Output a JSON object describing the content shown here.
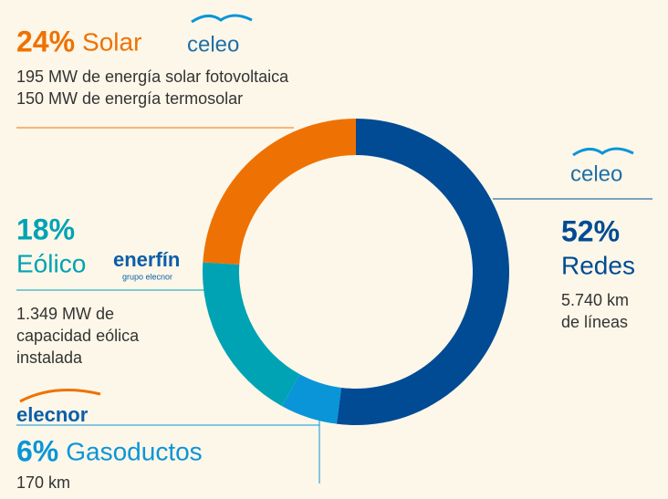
{
  "chart_data": {
    "type": "pie",
    "donut": true,
    "categories": [
      "Redes",
      "Gasoductos",
      "Eólico",
      "Solar"
    ],
    "values": [
      52,
      6,
      18,
      24
    ],
    "value_labels": [
      "52%",
      "6%",
      "18%",
      "24%"
    ],
    "colors": [
      "#004b93",
      "#0a95d8",
      "#00a3b4",
      "#ee7203"
    ],
    "notes": [
      [
        "5.740 km",
        "de líneas"
      ],
      [
        "170 km"
      ],
      [
        "1.349 MW de",
        "capacidad eólica",
        "instalada"
      ],
      [
        "195 MW de energía solar fotovoltaica",
        "150 MW de energía termosolar"
      ]
    ]
  },
  "logos": {
    "solar": "celeo",
    "redes": "celeo",
    "eolico": "enerfín",
    "eolico_group": "grupo elecnor",
    "gasoductos": "elecnor"
  }
}
